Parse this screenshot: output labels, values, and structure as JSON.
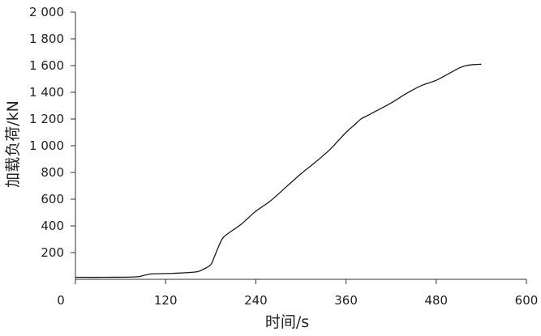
{
  "chart_data": {
    "type": "line",
    "xlabel": "时间/s",
    "ylabel": "加载负荷/kN",
    "xlim": [
      0,
      600
    ],
    "ylim": [
      0,
      2000
    ],
    "x_ticks": [
      0,
      120,
      240,
      360,
      480,
      600
    ],
    "y_ticks": [
      200,
      400,
      600,
      800,
      1000,
      1200,
      1400,
      1600,
      1800,
      2000
    ],
    "x_tick_labels": [
      "0",
      "120",
      "240",
      "360",
      "480",
      "600"
    ],
    "y_tick_labels": [
      "200",
      "400",
      "600",
      "800",
      "1 000",
      "1 200",
      "1 400",
      "1 600",
      "1 800",
      "2 000"
    ],
    "grid": false,
    "legend": "none",
    "line_color": "#1a1a1a",
    "series": [
      {
        "x": [
          0,
          40,
          80,
          90,
          100,
          110,
          130,
          160,
          170,
          180,
          185,
          190,
          195,
          200,
          210,
          220,
          230,
          240,
          260,
          280,
          300,
          320,
          340,
          360,
          370,
          380,
          390,
          400,
          420,
          440,
          460,
          480,
          500,
          510,
          520,
          530,
          540
        ],
        "y": [
          15,
          15,
          18,
          28,
          40,
          42,
          45,
          55,
          75,
          110,
          170,
          240,
          300,
          330,
          370,
          410,
          460,
          510,
          590,
          690,
          790,
          880,
          980,
          1100,
          1150,
          1200,
          1230,
          1260,
          1320,
          1390,
          1450,
          1490,
          1550,
          1580,
          1600,
          1607,
          1610
        ]
      }
    ]
  }
}
